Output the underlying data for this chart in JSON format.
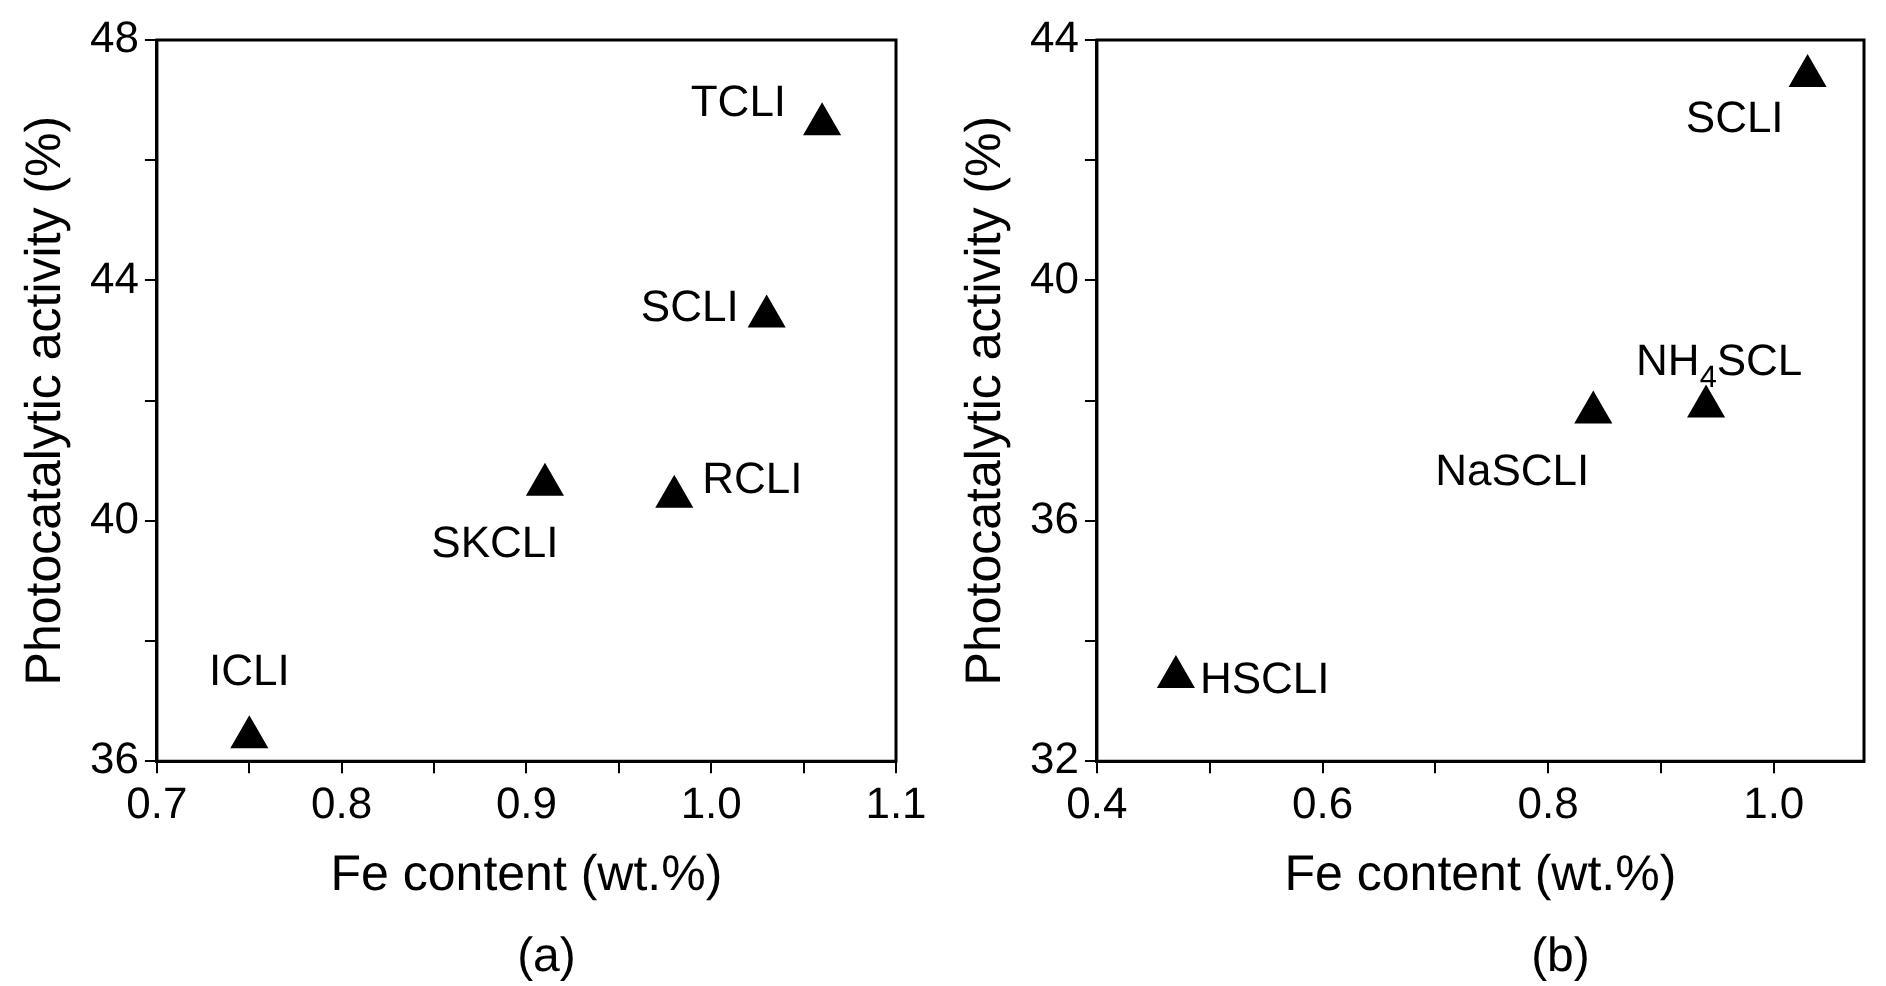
{
  "chart_data": [
    {
      "type": "scatter",
      "xlabel": "Fe content (wt.%)",
      "ylabel": "Photocatalytic activity (%)",
      "marker": "triangle",
      "color": "#000000",
      "x": [
        0.75,
        0.91,
        0.98,
        1.03,
        1.06
      ],
      "values": [
        36.4,
        40.6,
        40.4,
        43.4,
        46.6
      ],
      "xlim": [
        0.7,
        1.1
      ],
      "xticks": [
        0.7,
        {
          "value": 0.75,
          "label": null
        },
        0.8,
        {
          "value": 0.85,
          "label": null
        },
        0.9,
        {
          "value": 0.95,
          "label": null
        },
        {
          "value": 1.0,
          "label": "1.0"
        },
        {
          "value": 1.05,
          "label": null
        },
        1.1
      ],
      "ylim": [
        36,
        48
      ],
      "yticks": [
        36,
        {
          "value": 38,
          "label": null
        },
        40,
        {
          "value": 42,
          "label": null
        },
        44,
        {
          "value": 46,
          "label": null
        },
        48
      ],
      "annotations": [
        {
          "text": "ICLI",
          "x": 0.75,
          "y": 36.4
        },
        {
          "text": "SKCLI",
          "x": 0.91,
          "y": 40.6
        },
        {
          "text": "RCLI",
          "x": 0.98,
          "y": 40.4
        },
        {
          "text": "SCLI",
          "x": 1.03,
          "y": 43.4
        },
        {
          "text": "TCLI",
          "x": 1.06,
          "y": 46.6
        },
        "(a)"
      ]
    },
    {
      "type": "scatter",
      "xlabel": "Fe content (wt.%)",
      "ylabel": "Photocatalytic activity (%)",
      "marker": "triangle",
      "color": "#000000",
      "x": [
        0.47,
        0.84,
        0.94,
        1.03
      ],
      "values": [
        33.4,
        37.8,
        37.9,
        43.4
      ],
      "xlim": [
        0.4,
        1.08
      ],
      "xticks": [
        0.4,
        {
          "value": 0.5,
          "label": null
        },
        0.6,
        {
          "value": 0.7,
          "label": null
        },
        0.8,
        {
          "value": 0.9,
          "label": null
        },
        {
          "value": 1.0,
          "label": "1.0"
        }
      ],
      "ylim": [
        32,
        44
      ],
      "yticks": [
        32,
        {
          "value": 34,
          "label": null
        },
        36,
        {
          "value": 38,
          "label": null
        },
        40,
        {
          "value": 42,
          "label": null
        },
        44
      ],
      "annotations": [
        {
          "text": "HSCLI",
          "x": 0.47,
          "y": 33.4
        },
        {
          "text": "NaSCLI",
          "x": 0.84,
          "y": 37.8
        },
        {
          "text": "NH$_{4}$SCL",
          "x": 0.94,
          "y": 37.9
        },
        {
          "text": "SCLI",
          "x": 1.03,
          "y": 43.4
        },
        "(b)"
      ]
    }
  ]
}
